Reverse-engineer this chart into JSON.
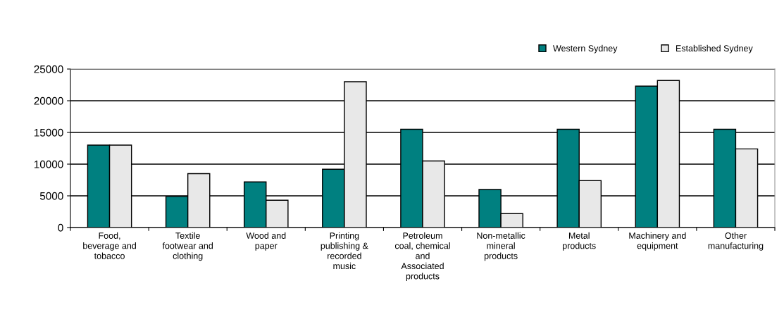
{
  "chart_data": {
    "type": "bar",
    "categories": [
      "Food,\nbeverage and\ntobacco",
      "Textile\nfootwear and\nclothing",
      "Wood and\npaper",
      "Printing\npublishing &\nrecorded\nmusic",
      "Petroleum\ncoal, chemical\nand\nAssociated\nproducts",
      "Non-metallic\nmineral\nproducts",
      "Metal\nproducts",
      "Machinery and\nequipment",
      "Other\nmanufacturing"
    ],
    "series": [
      {
        "name": "Western Sydney",
        "color": "#008080",
        "values": [
          13000,
          4900,
          7200,
          9200,
          15500,
          6000,
          15500,
          22300,
          15500
        ]
      },
      {
        "name": "Established Sydney",
        "color": "#e8e8e8",
        "values": [
          13000,
          8500,
          4300,
          23000,
          10500,
          2200,
          7400,
          23200,
          12400
        ]
      }
    ],
    "ylim": [
      0,
      25000
    ],
    "yticks": [
      0,
      5000,
      10000,
      15000,
      20000,
      25000
    ],
    "grid": "y",
    "legend": "top right"
  }
}
